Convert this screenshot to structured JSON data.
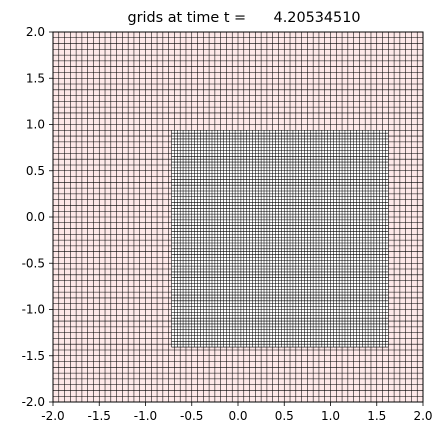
{
  "chart_data": {
    "type": "grid-plot",
    "title": "grids at time t =      4.20534510",
    "xlim": [
      -2.0,
      2.0
    ],
    "ylim": [
      -2.0,
      2.0
    ],
    "x_ticks": [
      "-2.0",
      "-1.5",
      "-1.0",
      "-0.5",
      "0.0",
      "0.5",
      "1.0",
      "1.5",
      "2.0"
    ],
    "y_ticks": [
      "-2.0",
      "-1.5",
      "-1.0",
      "-0.5",
      "0.0",
      "0.5",
      "1.0",
      "1.5",
      "2.0"
    ],
    "grids": [
      {
        "level": "coarse",
        "x_range": [
          -2.0,
          2.0
        ],
        "y_range": [
          -2.0,
          2.0
        ],
        "cell_size": 0.0625,
        "fill_color": "#fde8e8",
        "line_color": "#000000"
      },
      {
        "level": "fine",
        "x_range": [
          -0.71875,
          1.625
        ],
        "y_range": [
          -1.40625,
          0.9375
        ],
        "cell_size": 0.03125,
        "fill_color": "#ffffff",
        "line_color": "#000000"
      }
    ]
  }
}
